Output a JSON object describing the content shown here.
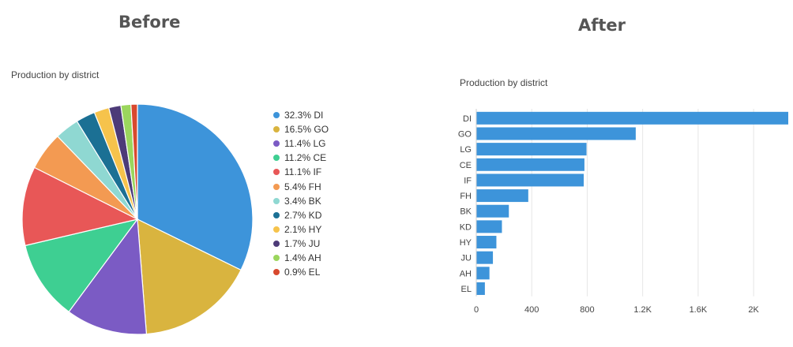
{
  "headings": {
    "before": "Before",
    "after": "After"
  },
  "chart_data": [
    {
      "type": "pie",
      "title": "Production by district",
      "labels": [
        "DI",
        "GO",
        "LG",
        "CE",
        "IF",
        "FH",
        "BK",
        "KD",
        "HY",
        "JU",
        "AH",
        "EL"
      ],
      "values": [
        32.3,
        16.5,
        11.4,
        11.2,
        11.1,
        5.4,
        3.4,
        2.7,
        2.1,
        1.7,
        1.4,
        0.9
      ],
      "legend": [
        "32.3% DI",
        "16.5% GO",
        "11.4% LG",
        "11.2% CE",
        "11.1% IF",
        "5.4% FH",
        "3.4% BK",
        "2.7% KD",
        "2.1% HY",
        "1.7% JU",
        "1.4% AH",
        "0.9% EL"
      ],
      "colors": [
        "#3d94da",
        "#d9b43f",
        "#7b5bc4",
        "#3ecf92",
        "#e85757",
        "#f39a52",
        "#8fd8d2",
        "#1b7094",
        "#f6c34c",
        "#4d3b78",
        "#9bd65d",
        "#d8492e"
      ],
      "legend_position": "right"
    },
    {
      "type": "bar",
      "orientation": "horizontal",
      "title": "Production by district",
      "categories": [
        "DI",
        "GO",
        "LG",
        "CE",
        "IF",
        "FH",
        "BK",
        "KD",
        "HY",
        "JU",
        "AH",
        "EL"
      ],
      "values": [
        2250,
        1150,
        795,
        780,
        775,
        375,
        235,
        185,
        145,
        120,
        95,
        62
      ],
      "xlim": [
        0,
        2250
      ],
      "xticks": [
        0,
        400,
        800,
        1200,
        1600,
        2000
      ],
      "xtick_labels": [
        "0",
        "400",
        "800",
        "1.2K",
        "1.6K",
        "2K"
      ],
      "grid": true,
      "bar_color": "#3d94da"
    }
  ]
}
